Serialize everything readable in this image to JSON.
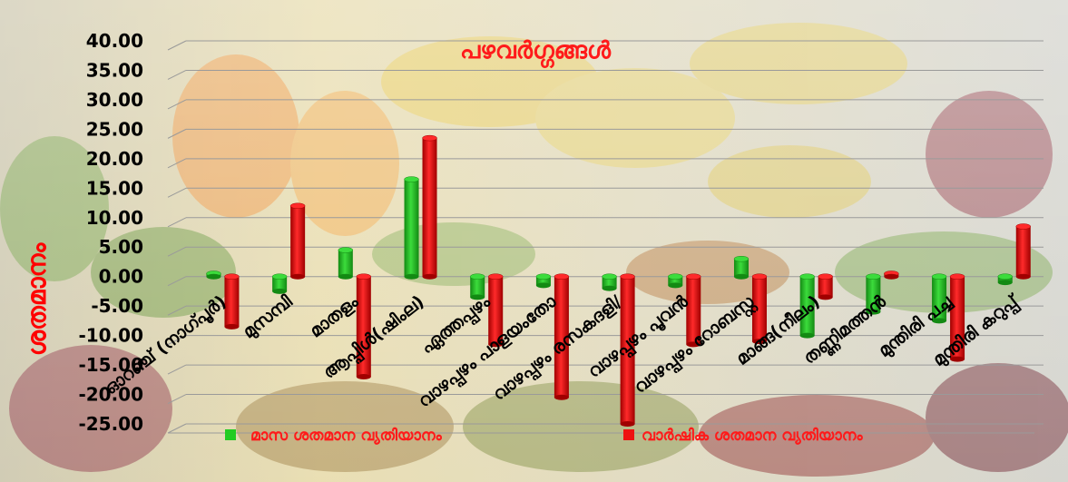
{
  "chart_data": {
    "type": "bar",
    "title": "പഴവർഗ്ഗങ്ങൾ",
    "xlabel": "",
    "ylabel": "ശതമാനം",
    "ylim": [
      -25,
      40
    ],
    "yticks": [
      "40.00",
      "35.00",
      "30.00",
      "25.00",
      "20.00",
      "15.00",
      "10.00",
      "5.00",
      "0.00",
      "-5.00",
      "-10.00",
      "-15.00",
      "-20.00",
      "-25.00"
    ],
    "categories": [
      "ഓറഞ്ച് (നാഗ്പൂർ)",
      "മുസമ്പി",
      "മാതളം",
      "ആപ്പിൾ(ഷിംല)",
      "ഏത്തപ്പഴം",
      "വാഴപ്പഴം പാളയംതോ",
      "വാഴപ്പഴം രസകദളി/",
      "വാഴപ്പഴം പൂവൻ",
      "വാഴപ്പഴം റോബസ്റ്റ",
      "മാങ്ങ(നീലം)",
      "തണ്ണിമത്തൻ",
      "മുന്തിരി പച്ച",
      "മുന്തിരി കറുപ്പ്"
    ],
    "series": [
      {
        "name": "മാസ ശതമാന വ്യതിയാനം",
        "color": "#22cc22",
        "values": [
          0.5,
          -2.5,
          4.5,
          16.5,
          -3.5,
          -1.5,
          -2,
          -1.5,
          3,
          -10,
          -6,
          -7.5,
          -1
        ]
      },
      {
        "name": "വാർഷിക ശതമാന വ്യതിയാനം",
        "color": "#ee1111",
        "values": [
          -8.5,
          12,
          -17,
          23.5,
          -11.5,
          -20.5,
          -25,
          -11.5,
          -11,
          -3.5,
          0.5,
          -14,
          8.5
        ]
      }
    ],
    "grid": true,
    "legend": "bottom"
  }
}
